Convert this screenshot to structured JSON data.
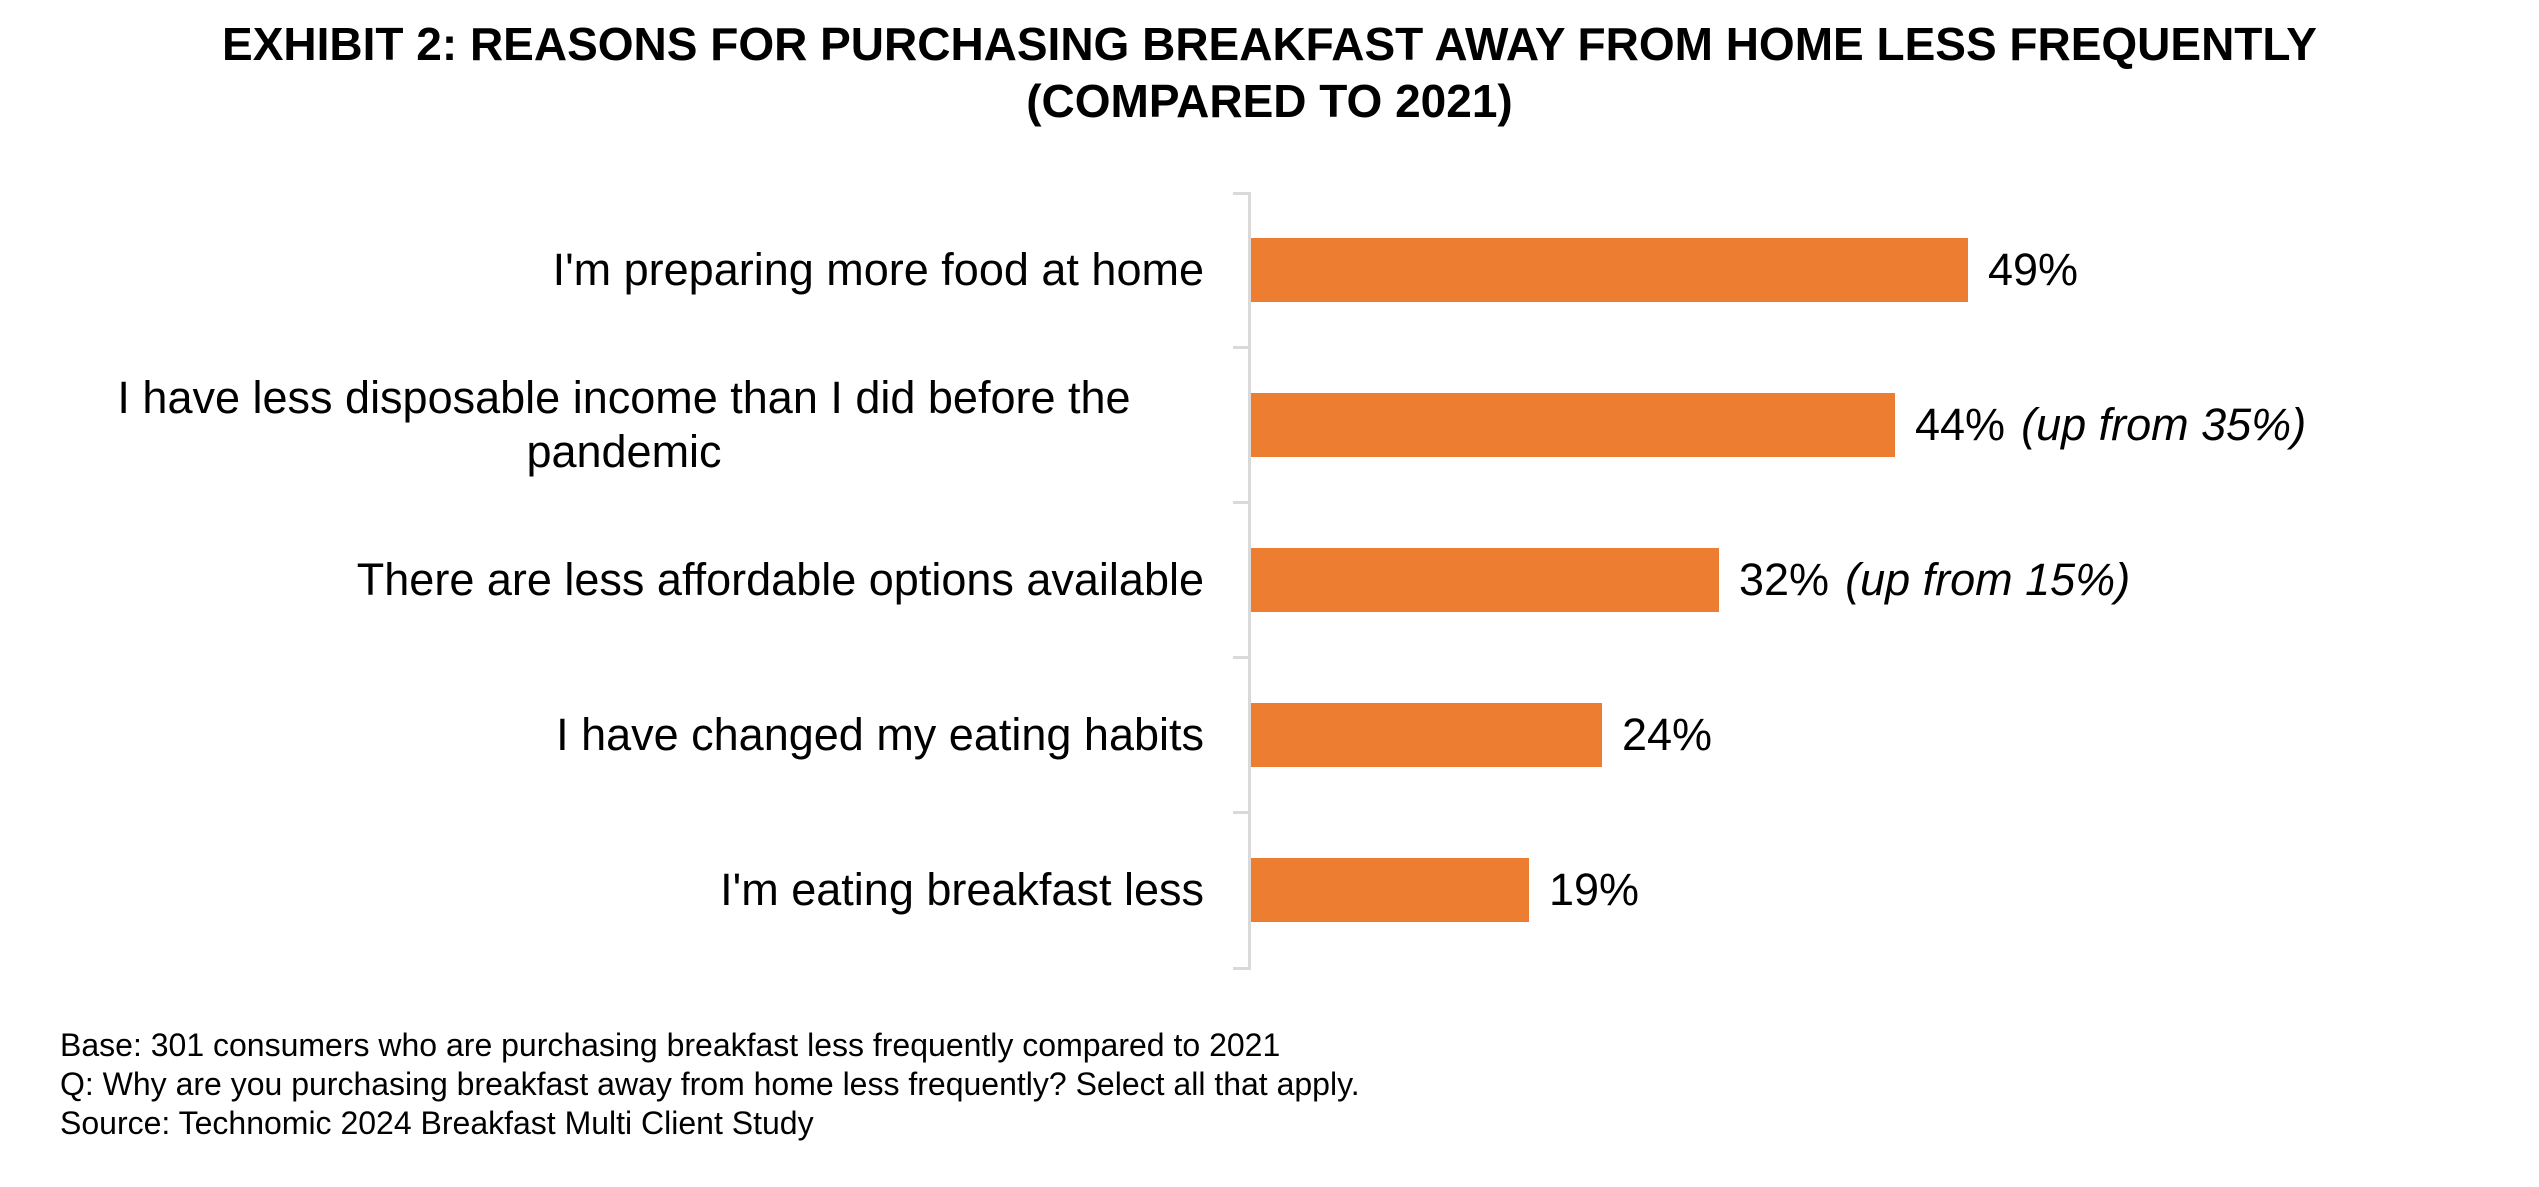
{
  "chart_data": {
    "type": "bar",
    "orientation": "horizontal",
    "title": "EXHIBIT 2: REASONS FOR PURCHASING BREAKFAST AWAY FROM HOME LESS FREQUENTLY (COMPARED TO 2021)",
    "title_lines": [
      "EXHIBIT 2: REASONS FOR PURCHASING BREAKFAST AWAY FROM HOME LESS FREQUENTLY",
      "(COMPARED TO 2021)"
    ],
    "categories": [
      "I'm preparing more food at home",
      "I have less disposable income than I did before the pandemic",
      "There are less affordable options available",
      "I have changed my eating habits",
      "I'm eating breakfast less"
    ],
    "values": [
      49,
      44,
      32,
      24,
      19
    ],
    "value_labels": [
      "49%",
      "44%",
      "32%",
      "24%",
      "19%"
    ],
    "notes": [
      "",
      "(up from 35%)",
      "(up from 15%)",
      "",
      ""
    ],
    "unit": "percent",
    "xlim": [
      0,
      88
    ],
    "grid": false,
    "legend": false,
    "bar_color": "#ED7D31",
    "axis_color": "#D9D9D9",
    "footnotes": [
      "Base: 301 consumers who are purchasing breakfast less frequently compared to 2021",
      "Q: Why are you purchasing breakfast away from home less frequently? Select all that apply.",
      "Source: Technomic 2024 Breakfast Multi Client Study"
    ]
  }
}
